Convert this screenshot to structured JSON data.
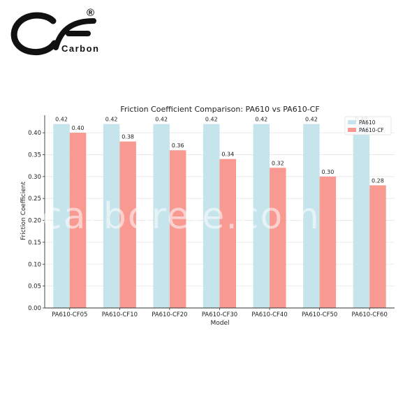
{
  "brand": {
    "logo_letters": "CF",
    "name": "Carbon",
    "registered_mark": "®"
  },
  "watermark": "carborele.com",
  "colors": {
    "pa610": "#c5e4ec",
    "pa610_cf": "#f89a91",
    "axis": "#333333",
    "grid": "#e6e6e6"
  },
  "chart_data": {
    "type": "bar",
    "title": "Friction Coefficient Comparison: PA610 vs PA610-CF",
    "xlabel": "Model",
    "ylabel": "Friction Coefficient",
    "categories": [
      "PA610-CF05",
      "PA610-CF10",
      "PA610-CF20",
      "PA610-CF30",
      "PA610-CF40",
      "PA610-CF50",
      "PA610-CF60"
    ],
    "series": [
      {
        "name": "PA610",
        "values": [
          0.42,
          0.42,
          0.42,
          0.42,
          0.42,
          0.42,
          0.42
        ],
        "labels": [
          "0.42",
          "0.42",
          "0.42",
          "0.42",
          "0.42",
          "0.42",
          "0.42"
        ]
      },
      {
        "name": "PA610-CF",
        "values": [
          0.4,
          0.38,
          0.36,
          0.34,
          0.32,
          0.3,
          0.28
        ],
        "labels": [
          "0.40",
          "0.38",
          "0.36",
          "0.34",
          "0.32",
          "0.30",
          "0.28"
        ]
      }
    ],
    "ylim": [
      0,
      0.44
    ],
    "yticks": [
      "0.00",
      "0.05",
      "0.10",
      "0.15",
      "0.20",
      "0.25",
      "0.30",
      "0.35",
      "0.40"
    ],
    "grid": true,
    "legend": "top-right"
  }
}
